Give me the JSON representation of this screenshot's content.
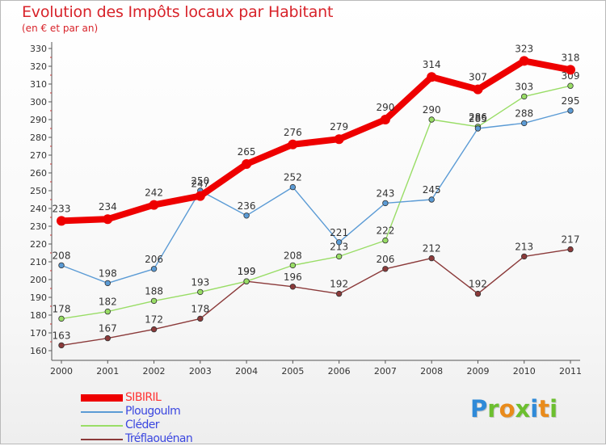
{
  "title": "Evolution des Impôts locaux par Habitant",
  "subtitle": "(en € et par an)",
  "logo": {
    "text": "Proxiti",
    "letters": [
      {
        "ch": "P",
        "color": "#2f8ad8"
      },
      {
        "ch": "r",
        "color": "#6cbf2f"
      },
      {
        "ch": "o",
        "color": "#e98b1b"
      },
      {
        "ch": "x",
        "color": "#6cbf2f"
      },
      {
        "ch": "i",
        "color": "#2f8ad8"
      },
      {
        "ch": "t",
        "color": "#e98b1b"
      },
      {
        "ch": "i",
        "color": "#6cbf2f"
      }
    ]
  },
  "chart_data": {
    "type": "line",
    "title": "Evolution des Impôts locaux par Habitant",
    "subtitle": "(en € et par an)",
    "xlabel": "",
    "ylabel": "",
    "categories": [
      "2000",
      "2001",
      "2002",
      "2003",
      "2004",
      "2005",
      "2006",
      "2007",
      "2008",
      "2009",
      "2010",
      "2011"
    ],
    "ylim": [
      160,
      330
    ],
    "ytick_step": 10,
    "grid": false,
    "legend_position": "bottom-left",
    "series": [
      {
        "name": "SIBIRIL",
        "color": "#ee0000",
        "values": [
          233,
          234,
          242,
          247,
          265,
          276,
          279,
          290,
          314,
          307,
          323,
          318
        ]
      },
      {
        "name": "Plougoulm",
        "color": "#5b9bd5",
        "values": [
          208,
          198,
          206,
          250,
          236,
          252,
          221,
          243,
          245,
          285,
          288,
          295
        ]
      },
      {
        "name": "Cléder",
        "color": "#99dd66",
        "values": [
          178,
          182,
          188,
          193,
          199,
          208,
          213,
          222,
          290,
          286,
          303,
          309
        ]
      },
      {
        "name": "Tréflaouénan",
        "color": "#8b3a3a",
        "values": [
          163,
          167,
          172,
          178,
          199,
          196,
          192,
          206,
          212,
          192,
          213,
          217
        ]
      }
    ]
  }
}
